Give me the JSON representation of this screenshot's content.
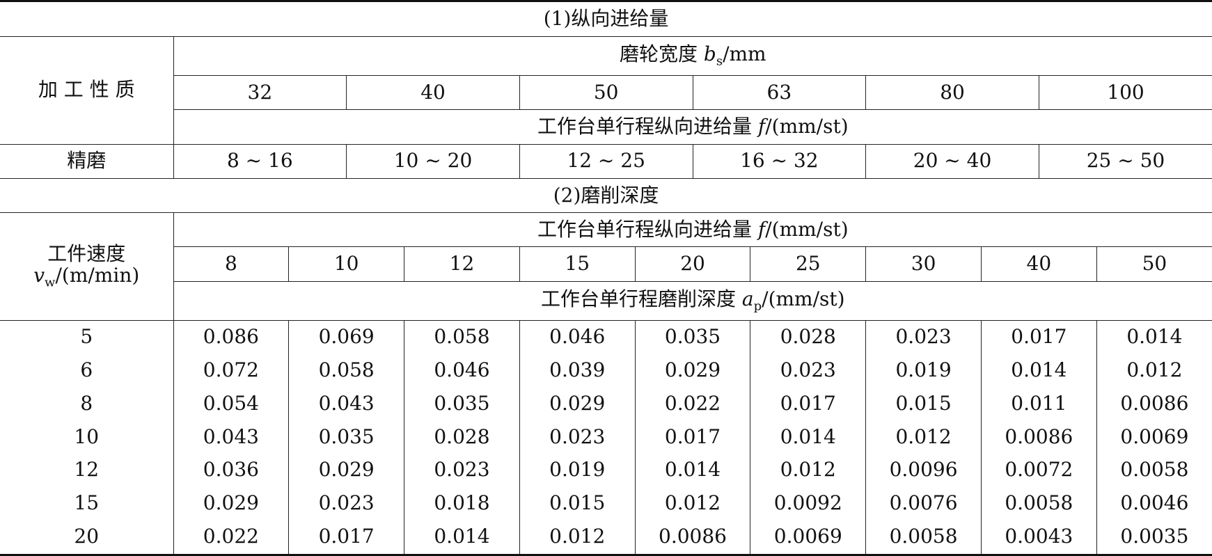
{
  "section1": {
    "title": "(1)纵向进给量",
    "row_header": "加 工 性 质",
    "width_header": {
      "text": "磨轮宽度 ",
      "symbol": "b",
      "subscript": "s",
      "unit": "/mm"
    },
    "widths": [
      32,
      40,
      50,
      63,
      80,
      100
    ],
    "feed_header": {
      "text": "工作台单行程纵向进给量 ",
      "symbol": "f",
      "unit": "/(mm/st)"
    },
    "rows": [
      {
        "label": "精磨",
        "values": [
          "8 ~ 16",
          "10 ~ 20",
          "12 ~ 25",
          "16 ~ 32",
          "20 ~ 40",
          "25 ~ 50"
        ]
      }
    ]
  },
  "section2": {
    "title": "(2)磨削深度",
    "row_header": {
      "text": "工件速度",
      "symbol": "v",
      "subscript": "w",
      "unit": "/(m/min)"
    },
    "feed_header": {
      "text": "工作台单行程纵向进给量 ",
      "symbol": "f",
      "unit": "/(mm/st)"
    },
    "feeds": [
      8,
      10,
      12,
      15,
      20,
      25,
      30,
      40,
      50
    ],
    "depth_header": {
      "text": "工作台单行程磨削深度 ",
      "symbol": "a",
      "subscript": "p",
      "unit": "/(mm/st)"
    },
    "rows": [
      {
        "speed": 5,
        "values": [
          0.086,
          0.069,
          0.058,
          0.046,
          0.035,
          0.028,
          0.023,
          0.017,
          0.014
        ]
      },
      {
        "speed": 6,
        "values": [
          0.072,
          0.058,
          0.046,
          0.039,
          0.029,
          0.023,
          0.019,
          0.014,
          0.012
        ]
      },
      {
        "speed": 8,
        "values": [
          0.054,
          0.043,
          0.035,
          0.029,
          0.022,
          0.017,
          0.015,
          0.011,
          0.0086
        ]
      },
      {
        "speed": 10,
        "values": [
          0.043,
          0.035,
          0.028,
          0.023,
          0.017,
          0.014,
          0.012,
          0.0086,
          0.0069
        ]
      },
      {
        "speed": 12,
        "values": [
          0.036,
          0.029,
          0.023,
          0.019,
          0.014,
          0.012,
          0.0096,
          0.0072,
          0.0058
        ]
      },
      {
        "speed": 15,
        "values": [
          0.029,
          0.023,
          0.018,
          0.015,
          0.012,
          0.0092,
          0.0076,
          0.0058,
          0.0046
        ]
      },
      {
        "speed": 20,
        "values": [
          0.022,
          0.017,
          0.014,
          0.012,
          0.0086,
          0.0069,
          0.0058,
          0.0043,
          0.0035
        ]
      }
    ]
  }
}
